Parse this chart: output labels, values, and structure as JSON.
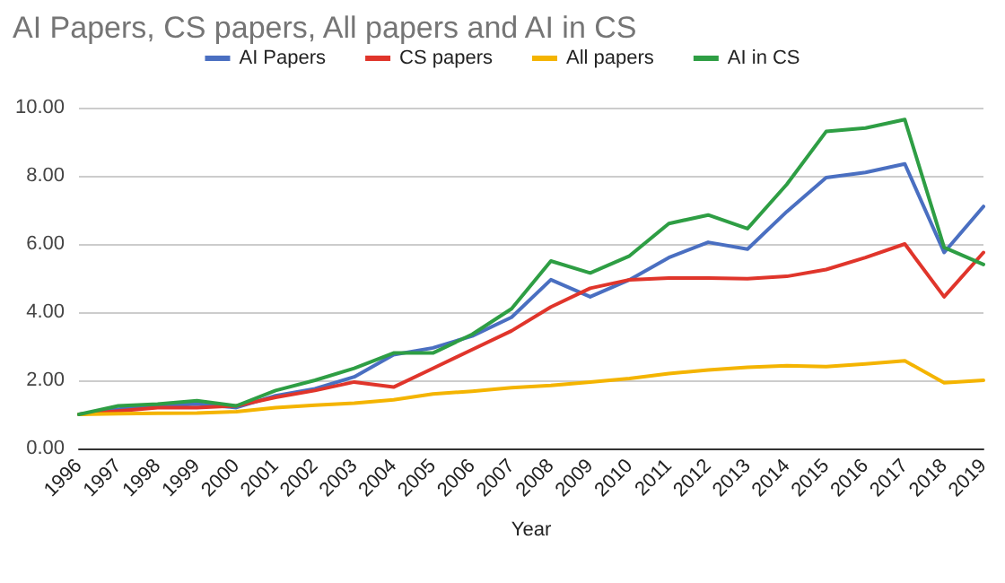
{
  "chart_data": {
    "type": "line",
    "title": "AI Papers, CS papers, All papers and AI in CS",
    "xlabel": "Year",
    "categories": [
      "1996",
      "1997",
      "1998",
      "1999",
      "2000",
      "2001",
      "2002",
      "2003",
      "2004",
      "2005",
      "2006",
      "2007",
      "2008",
      "2009",
      "2010",
      "2011",
      "2012",
      "2013",
      "2014",
      "2015",
      "2016",
      "2017",
      "2018",
      "2019"
    ],
    "series": [
      {
        "name": "AI Papers",
        "color": "#4a6fc1",
        "values": [
          1,
          1.15,
          1.25,
          1.3,
          1.2,
          1.55,
          1.75,
          2.1,
          2.75,
          2.95,
          3.3,
          3.85,
          4.95,
          4.45,
          4.95,
          5.6,
          6.05,
          5.85,
          6.95,
          7.95,
          8.1,
          8.35,
          5.75,
          7.1
        ]
      },
      {
        "name": "CS papers",
        "color": "#e0352b",
        "values": [
          1,
          1.1,
          1.2,
          1.2,
          1.25,
          1.5,
          1.7,
          1.95,
          1.8,
          2.35,
          2.9,
          3.45,
          4.15,
          4.7,
          4.95,
          5.0,
          5.0,
          4.98,
          5.05,
          5.25,
          5.6,
          6.0,
          4.45,
          5.75
        ]
      },
      {
        "name": "All papers",
        "color": "#f4b400",
        "values": [
          1,
          1.02,
          1.03,
          1.04,
          1.08,
          1.2,
          1.27,
          1.33,
          1.43,
          1.6,
          1.68,
          1.78,
          1.85,
          1.95,
          2.05,
          2.2,
          2.3,
          2.38,
          2.43,
          2.4,
          2.48,
          2.57,
          1.93,
          2.0
        ]
      },
      {
        "name": "AI in CS",
        "color": "#2e9e44",
        "values": [
          1,
          1.25,
          1.3,
          1.4,
          1.25,
          1.7,
          2.0,
          2.35,
          2.8,
          2.8,
          3.35,
          4.1,
          5.5,
          5.15,
          5.65,
          6.6,
          6.85,
          6.45,
          7.75,
          9.3,
          9.4,
          9.65,
          5.9,
          5.4
        ]
      }
    ],
    "ylim": [
      0,
      10
    ],
    "yticks": [
      {
        "value": 0,
        "label": "0.00"
      },
      {
        "value": 2,
        "label": "2.00"
      },
      {
        "value": 4,
        "label": "4.00"
      },
      {
        "value": 6,
        "label": "6.00"
      },
      {
        "value": 8,
        "label": "8.00"
      },
      {
        "value": 10,
        "label": "10.00"
      }
    ],
    "grid": "y",
    "legend": "top",
    "marker": "none",
    "line_style": "solid"
  }
}
